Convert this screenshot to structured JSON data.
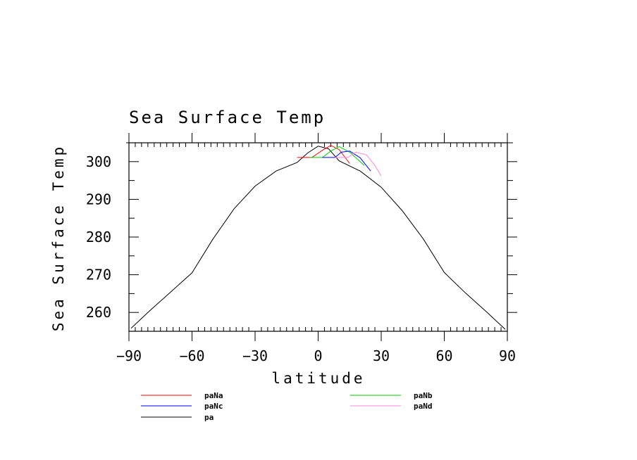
{
  "chart_data": {
    "type": "line",
    "title": "Sea Surface Temp",
    "xlabel": "latitude",
    "ylabel": "Sea Surface Temp",
    "xlim": [
      -90,
      90
    ],
    "ylim": [
      255,
      305
    ],
    "xticks": [
      -90,
      -60,
      -30,
      0,
      30,
      60,
      90
    ],
    "xtick_labels": [
      "−90",
      "−60",
      "−30",
      "0",
      "30",
      "60",
      "90"
    ],
    "yticks": [
      260,
      270,
      280,
      290,
      300
    ],
    "grid": false,
    "legend_position": "bottom",
    "series": [
      {
        "name": "pa",
        "color": "#000000",
        "x": [
          -89,
          -80,
          -70,
          -60,
          -50,
          -40,
          -30,
          -20,
          -10,
          -5,
          0,
          5,
          10,
          20,
          30,
          40,
          50,
          60,
          70,
          80,
          89
        ],
        "y": [
          255.8,
          260.5,
          265.5,
          270.5,
          279.5,
          287.5,
          293.5,
          297.5,
          299.8,
          302.3,
          304.1,
          303.4,
          300.2,
          297.5,
          293.2,
          287.0,
          279.5,
          270.6,
          265.2,
          260.2,
          255.5
        ]
      },
      {
        "name": "paNa",
        "color": "#ff0000",
        "x": [
          -10,
          -3,
          2,
          6,
          10,
          15
        ],
        "y": [
          301.1,
          301.1,
          303.0,
          304.3,
          303.2,
          299.5
        ]
      },
      {
        "name": "paNb",
        "color": "#00cc00",
        "x": [
          -4,
          2,
          6,
          10,
          15,
          22
        ],
        "y": [
          301.1,
          301.1,
          302.8,
          304.0,
          302.5,
          299.0
        ]
      },
      {
        "name": "paNc",
        "color": "#0000ff",
        "x": [
          2,
          8,
          11,
          15,
          20,
          25
        ],
        "y": [
          301.1,
          301.1,
          302.5,
          302.8,
          301.0,
          297.5
        ]
      },
      {
        "name": "paNd",
        "color": "#ff88dd",
        "x": [
          8,
          14,
          18,
          23,
          27,
          30
        ],
        "y": [
          301.1,
          301.1,
          302.5,
          301.8,
          299.0,
          296.2
        ]
      }
    ],
    "legend": [
      {
        "name": "paNa",
        "color": "#ff0000"
      },
      {
        "name": "paNb",
        "color": "#00cc00"
      },
      {
        "name": "paNc",
        "color": "#0000ff"
      },
      {
        "name": "paNd",
        "color": "#ff88dd"
      },
      {
        "name": "pa",
        "color": "#000000"
      }
    ]
  }
}
